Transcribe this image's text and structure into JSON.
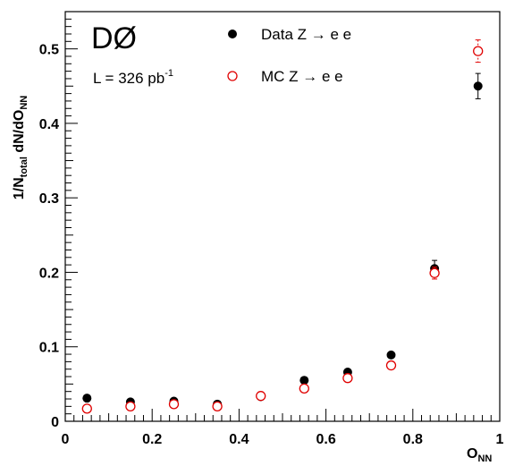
{
  "chart_data": {
    "type": "scatter",
    "experiment_label": "DØ",
    "luminosity": {
      "text": "L = 326 pb",
      "superscript": "-1"
    },
    "xlabel": {
      "main": "O",
      "sub": "NN"
    },
    "ylabel": {
      "pre": "1/N",
      "sub1": "total",
      "mid": " dN/dO",
      "sub2": "NN"
    },
    "xlim": [
      0,
      1
    ],
    "ylim": [
      0,
      0.55
    ],
    "xticks": [
      0,
      0.2,
      0.4,
      0.6,
      0.8,
      1
    ],
    "xtick_labels": [
      "0",
      "0.2",
      "0.4",
      "0.6",
      "0.8",
      "1"
    ],
    "yticks": [
      0,
      0.1,
      0.2,
      0.3,
      0.4,
      0.5
    ],
    "ytick_labels": [
      "0",
      "0.1",
      "0.2",
      "0.3",
      "0.4",
      "0.5"
    ],
    "legend_position": "top",
    "series": [
      {
        "name": "Data Z → e e",
        "marker": "filled-circle",
        "color": "#000000",
        "x": [
          0.05,
          0.15,
          0.25,
          0.35,
          0.45,
          0.55,
          0.65,
          0.75,
          0.85,
          0.95
        ],
        "y": [
          0.031,
          0.026,
          0.027,
          0.023,
          0.033,
          0.055,
          0.066,
          0.089,
          0.205,
          0.45
        ],
        "yerr": [
          0.002,
          0.002,
          0.002,
          0.002,
          0.002,
          0.003,
          0.003,
          0.004,
          0.011,
          0.017
        ]
      },
      {
        "name": "MC Z → e e",
        "marker": "open-circle",
        "color": "#e00000",
        "x": [
          0.05,
          0.15,
          0.25,
          0.35,
          0.45,
          0.55,
          0.65,
          0.75,
          0.85,
          0.95
        ],
        "y": [
          0.017,
          0.02,
          0.023,
          0.02,
          0.034,
          0.044,
          0.058,
          0.075,
          0.199,
          0.497
        ],
        "yerr": [
          0.001,
          0.001,
          0.001,
          0.001,
          0.002,
          0.002,
          0.002,
          0.003,
          0.008,
          0.015
        ]
      }
    ]
  }
}
